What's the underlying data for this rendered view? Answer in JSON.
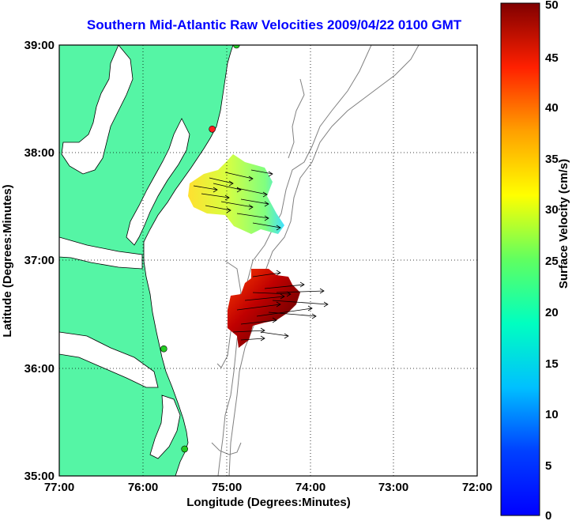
{
  "title": "Southern Mid-Atlantic Raw Velocities 2009/04/22 0100 GMT",
  "map": {
    "xlabel": "Longitude (Degrees:Minutes)",
    "ylabel": "Latitude (Degrees:Minutes)",
    "x_ticks": [
      "77:00",
      "76:00",
      "75:00",
      "74:00",
      "73:00",
      "72:00"
    ],
    "y_ticks": [
      "39:00",
      "38:00",
      "37:00",
      "36:00",
      "35:00"
    ],
    "lon_range_west": [
      77,
      72
    ],
    "lat_range": [
      35,
      39
    ],
    "grid": "dotted",
    "land_color": "#55f5a5",
    "coast_color": "#000000",
    "bathymetry_color": "#808080",
    "station_markers": [
      {
        "lon_w": 74.88,
        "lat": 39.0,
        "color": "#22cc22"
      },
      {
        "lon_w": 75.17,
        "lat": 38.22,
        "color": "#ff2020"
      },
      {
        "lon_w": 75.75,
        "lat": 36.18,
        "color": "#22cc22"
      },
      {
        "lon_w": 75.5,
        "lat": 35.25,
        "color": "#22cc22"
      }
    ]
  },
  "colorbar": {
    "label": "Surface Velocity (cm/s)",
    "ticks": [
      "0",
      "5",
      "10",
      "15",
      "20",
      "25",
      "30",
      "35",
      "40",
      "45",
      "50"
    ],
    "range": [
      0,
      50
    ],
    "colormap": "jet"
  }
}
